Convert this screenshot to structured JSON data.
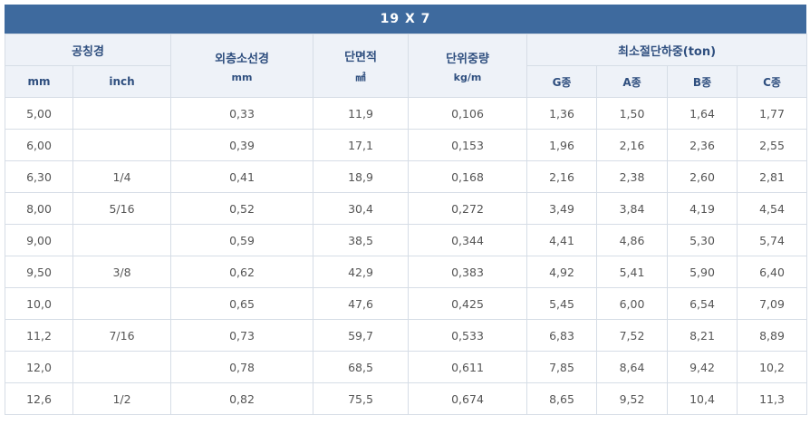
{
  "title": "19 X 7",
  "headers": {
    "nominal_diameter": "공칭경",
    "mm": "mm",
    "inch": "inch",
    "outer_wire_diameter": "외층소선경",
    "outer_wire_unit": "mm",
    "cross_section": "단면적",
    "cross_section_unit": "㎟",
    "unit_weight": "단위중량",
    "unit_weight_unit": "kg/m",
    "min_breaking_load": "최소절단하중(ton)",
    "g_grade": "G종",
    "a_grade": "A종",
    "b_grade": "B종",
    "c_grade": "C종"
  },
  "rows": [
    [
      "5,00",
      "",
      "0,33",
      "11,9",
      "0,106",
      "1,36",
      "1,50",
      "1,64",
      "1,77"
    ],
    [
      "6,00",
      "",
      "0,39",
      "17,1",
      "0,153",
      "1,96",
      "2,16",
      "2,36",
      "2,55"
    ],
    [
      "6,30",
      "1/4",
      "0,41",
      "18,9",
      "0,168",
      "2,16",
      "2,38",
      "2,60",
      "2,81"
    ],
    [
      "8,00",
      "5/16",
      "0,52",
      "30,4",
      "0,272",
      "3,49",
      "3,84",
      "4,19",
      "4,54"
    ],
    [
      "9,00",
      "",
      "0,59",
      "38,5",
      "0,344",
      "4,41",
      "4,86",
      "5,30",
      "5,74"
    ],
    [
      "9,50",
      "3/8",
      "0,62",
      "42,9",
      "0,383",
      "4,92",
      "5,41",
      "5,90",
      "6,40"
    ],
    [
      "10,0",
      "",
      "0,65",
      "47,6",
      "0,425",
      "5,45",
      "6,00",
      "6,54",
      "7,09"
    ],
    [
      "11,2",
      "7/16",
      "0,73",
      "59,7",
      "0,533",
      "6,83",
      "7,52",
      "8,21",
      "8,89"
    ],
    [
      "12,0",
      "",
      "0,78",
      "68,5",
      "0,611",
      "7,85",
      "8,64",
      "9,42",
      "10,2"
    ],
    [
      "12,6",
      "1/2",
      "0,82",
      "75,5",
      "0,674",
      "8,65",
      "9,52",
      "10,4",
      "11,3"
    ]
  ]
}
